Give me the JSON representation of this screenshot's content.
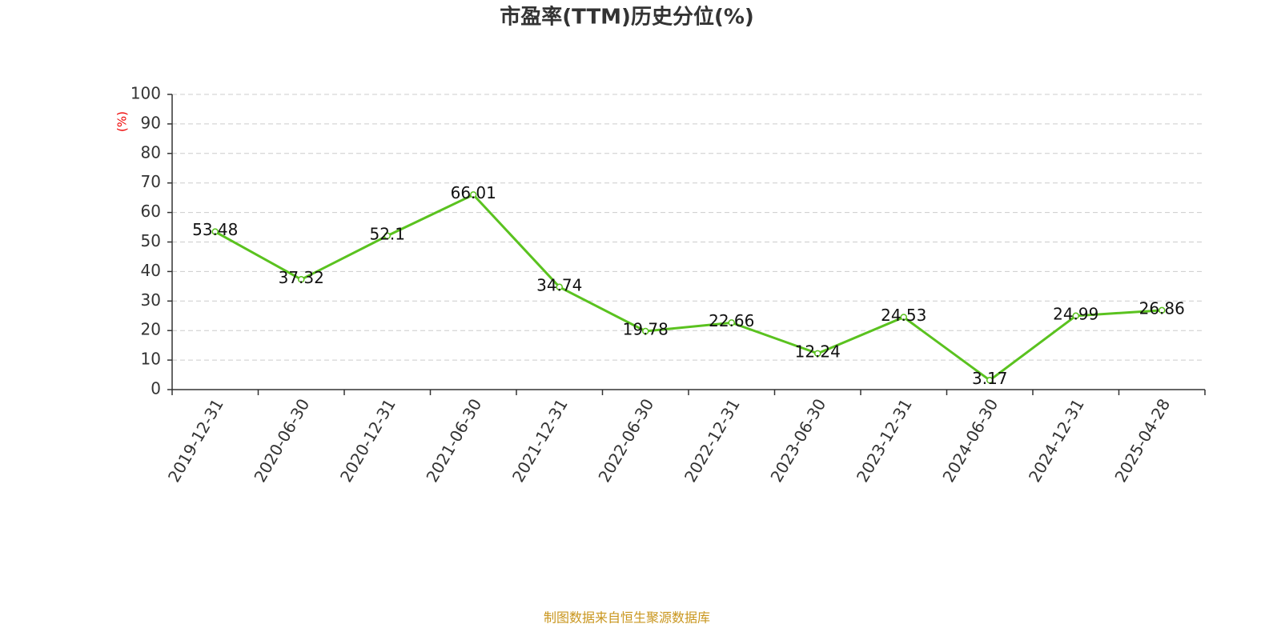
{
  "chart_data": {
    "type": "line",
    "title": "市盈率(TTM)历史分位(%)",
    "y_label": "(%)",
    "categories": [
      "2019-12-31",
      "2020-06-30",
      "2020-12-31",
      "2021-06-30",
      "2021-12-31",
      "2022-06-30",
      "2022-12-31",
      "2023-06-30",
      "2023-12-31",
      "2024-06-30",
      "2024-12-31",
      "2025-04-28"
    ],
    "series": [
      {
        "name": "市盈率(TTM)历史分位",
        "color": "#5ac21f",
        "values": [
          53.48,
          37.32,
          52.1,
          66.01,
          34.74,
          19.78,
          22.66,
          12.24,
          24.53,
          3.17,
          24.99,
          26.86
        ]
      }
    ],
    "ylim": [
      0,
      100
    ],
    "yticks": [
      0,
      10,
      20,
      30,
      40,
      50,
      60,
      70,
      80,
      90,
      100
    ],
    "grid": true,
    "source": "制图数据来自恒生聚源数据库"
  }
}
